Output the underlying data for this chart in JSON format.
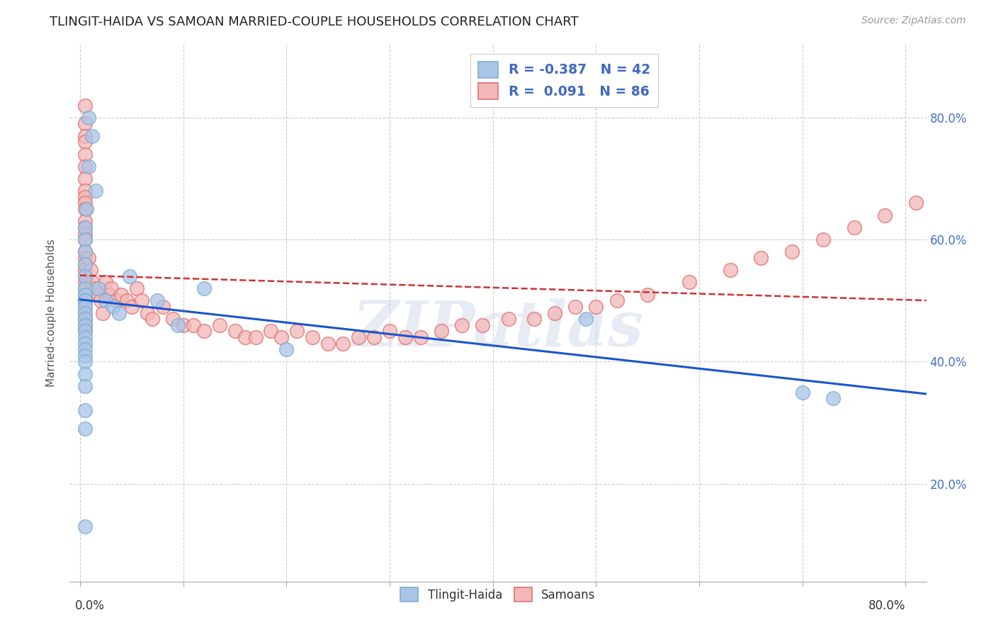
{
  "title": "TLINGIT-HAIDA VS SAMOAN MARRIED-COUPLE HOUSEHOLDS CORRELATION CHART",
  "source": "Source: ZipAtlas.com",
  "ylabel": "Married-couple Households",
  "legend1_r": "-0.387",
  "legend1_n": "42",
  "legend2_r": "0.091",
  "legend2_n": "86",
  "blue_scatter_face": "#aac4e8",
  "blue_scatter_edge": "#7bafd4",
  "pink_scatter_face": "#f2b8b8",
  "pink_scatter_edge": "#e07070",
  "blue_line_color": "#1a56cc",
  "pink_line_color": "#cc3333",
  "grid_color": "#cccccc",
  "right_tick_color": "#4472c4",
  "watermark": "ZIPatlas",
  "xlim": [
    -0.01,
    0.82
  ],
  "ylim": [
    0.04,
    0.92
  ],
  "tlingit_x": [
    0.008,
    0.012,
    0.008,
    0.015,
    0.006,
    0.005,
    0.005,
    0.005,
    0.005,
    0.005,
    0.005,
    0.005,
    0.005,
    0.005,
    0.005,
    0.005,
    0.005,
    0.005,
    0.005,
    0.005,
    0.005,
    0.005,
    0.005,
    0.005,
    0.005,
    0.005,
    0.005,
    0.005,
    0.005,
    0.005,
    0.018,
    0.025,
    0.032,
    0.038,
    0.048,
    0.075,
    0.095,
    0.12,
    0.2,
    0.49,
    0.7,
    0.73
  ],
  "tlingit_y": [
    0.8,
    0.77,
    0.72,
    0.68,
    0.65,
    0.62,
    0.6,
    0.58,
    0.56,
    0.54,
    0.52,
    0.51,
    0.5,
    0.5,
    0.49,
    0.49,
    0.48,
    0.47,
    0.46,
    0.45,
    0.44,
    0.43,
    0.42,
    0.41,
    0.4,
    0.38,
    0.36,
    0.32,
    0.29,
    0.13,
    0.52,
    0.5,
    0.49,
    0.48,
    0.54,
    0.5,
    0.46,
    0.52,
    0.42,
    0.47,
    0.35,
    0.34
  ],
  "samoan_x": [
    0.005,
    0.005,
    0.005,
    0.005,
    0.005,
    0.005,
    0.005,
    0.005,
    0.005,
    0.005,
    0.005,
    0.005,
    0.005,
    0.005,
    0.005,
    0.005,
    0.005,
    0.005,
    0.005,
    0.005,
    0.005,
    0.005,
    0.005,
    0.005,
    0.005,
    0.005,
    0.005,
    0.005,
    0.005,
    0.005,
    0.008,
    0.01,
    0.012,
    0.015,
    0.018,
    0.02,
    0.022,
    0.025,
    0.028,
    0.03,
    0.035,
    0.04,
    0.045,
    0.05,
    0.055,
    0.06,
    0.065,
    0.07,
    0.08,
    0.09,
    0.1,
    0.11,
    0.12,
    0.135,
    0.15,
    0.16,
    0.17,
    0.185,
    0.195,
    0.21,
    0.225,
    0.24,
    0.255,
    0.27,
    0.285,
    0.3,
    0.315,
    0.33,
    0.35,
    0.37,
    0.39,
    0.415,
    0.44,
    0.46,
    0.48,
    0.5,
    0.52,
    0.55,
    0.59,
    0.63,
    0.66,
    0.69,
    0.72,
    0.75,
    0.78,
    0.81
  ],
  "samoan_y": [
    0.82,
    0.79,
    0.77,
    0.76,
    0.74,
    0.72,
    0.7,
    0.68,
    0.67,
    0.66,
    0.65,
    0.63,
    0.62,
    0.61,
    0.6,
    0.58,
    0.57,
    0.56,
    0.55,
    0.54,
    0.53,
    0.52,
    0.51,
    0.5,
    0.5,
    0.49,
    0.48,
    0.47,
    0.46,
    0.45,
    0.57,
    0.55,
    0.53,
    0.52,
    0.51,
    0.5,
    0.48,
    0.53,
    0.51,
    0.52,
    0.5,
    0.51,
    0.5,
    0.49,
    0.52,
    0.5,
    0.48,
    0.47,
    0.49,
    0.47,
    0.46,
    0.46,
    0.45,
    0.46,
    0.45,
    0.44,
    0.44,
    0.45,
    0.44,
    0.45,
    0.44,
    0.43,
    0.43,
    0.44,
    0.44,
    0.45,
    0.44,
    0.44,
    0.45,
    0.46,
    0.46,
    0.47,
    0.47,
    0.48,
    0.49,
    0.49,
    0.5,
    0.51,
    0.53,
    0.55,
    0.57,
    0.58,
    0.6,
    0.62,
    0.64,
    0.66
  ]
}
